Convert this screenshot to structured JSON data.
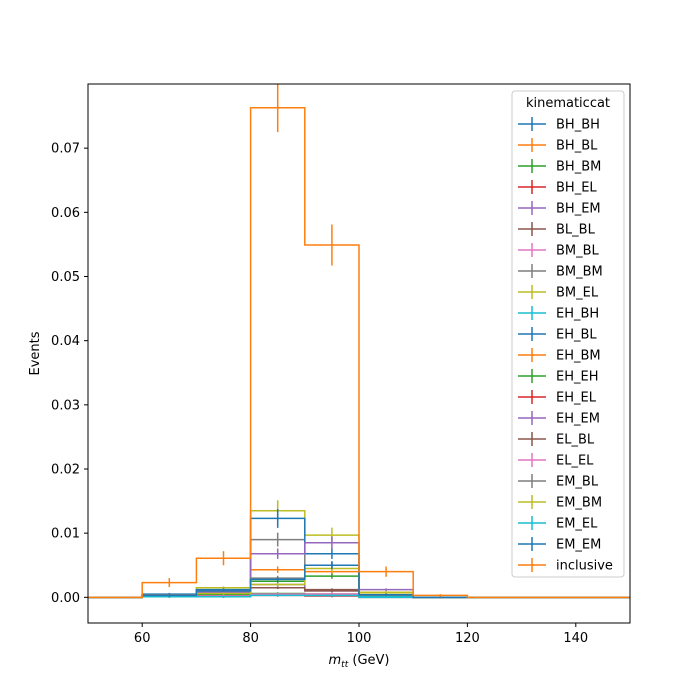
{
  "chart_data": {
    "type": "histogram-step",
    "xlabel": "$m_{tt}$ (GeV)",
    "xlabel_main": "m",
    "xlabel_sub": "tt",
    "xlabel_unit": " (GeV)",
    "ylabel": "Events",
    "xlim": [
      50,
      150
    ],
    "ylim": [
      -0.004,
      0.08
    ],
    "x_ticks": [
      60,
      80,
      100,
      120,
      140
    ],
    "y_ticks": [
      0.0,
      0.01,
      0.02,
      0.03,
      0.04,
      0.05,
      0.06,
      0.07
    ],
    "y_tick_labels": [
      "0.00",
      "0.01",
      "0.02",
      "0.03",
      "0.04",
      "0.05",
      "0.06",
      "0.07"
    ],
    "grid": false,
    "bin_edges": [
      50,
      60,
      70,
      80,
      90,
      100,
      110,
      120,
      130,
      140,
      150
    ],
    "legend": {
      "title": "kinematiccat",
      "placement": "top-right"
    },
    "series": [
      {
        "name": "BH_BH",
        "color": "#1f77b4",
        "values": [
          0,
          0.0004,
          0.0004,
          0.0005,
          0.0004,
          0.0002,
          0,
          0,
          0,
          0
        ]
      },
      {
        "name": "BH_BL",
        "color": "#ff7f0e",
        "values": [
          0,
          0.0003,
          0.0003,
          0.0004,
          0.0004,
          0.0001,
          0,
          0,
          0,
          0
        ]
      },
      {
        "name": "BH_BM",
        "color": "#2ca02c",
        "values": [
          0,
          0.0003,
          0.0004,
          0.0006,
          0.0005,
          0.0001,
          0,
          0,
          0,
          0
        ]
      },
      {
        "name": "BH_EL",
        "color": "#d62728",
        "values": [
          0,
          0.0001,
          0.0001,
          0.0003,
          0.0002,
          0,
          0,
          0,
          0,
          0
        ]
      },
      {
        "name": "BH_EM",
        "color": "#9467bd",
        "values": [
          0,
          0.0002,
          0.0003,
          0.002,
          0.001,
          0.0002,
          0,
          0,
          0,
          0
        ]
      },
      {
        "name": "BL_BL",
        "color": "#8c564b",
        "values": [
          0,
          0.0002,
          0.0002,
          0.0015,
          0.0012,
          0.0001,
          0,
          0,
          0,
          0
        ]
      },
      {
        "name": "BM_BL",
        "color": "#e377c2",
        "values": [
          0,
          0.0002,
          0.0003,
          0.0005,
          0.0004,
          0.0001,
          0,
          0,
          0,
          0
        ]
      },
      {
        "name": "BM_BM",
        "color": "#7f7f7f",
        "values": [
          0,
          0.0003,
          0.0005,
          0.009,
          0.005,
          0.0003,
          0,
          0,
          0,
          0
        ]
      },
      {
        "name": "BM_EL",
        "color": "#bcbd22",
        "values": [
          0,
          0.0004,
          0.0015,
          0.0135,
          0.0097,
          0.0005,
          0,
          0,
          0,
          0
        ]
      },
      {
        "name": "EH_BH",
        "color": "#17becf",
        "values": [
          0,
          0.0002,
          0.0002,
          0.0004,
          0.0003,
          0,
          0,
          0,
          0,
          0
        ]
      },
      {
        "name": "EH_BL",
        "color": "#1f77b4",
        "values": [
          0,
          0.0005,
          0.0012,
          0.0123,
          0.0068,
          0.0003,
          0,
          0,
          0,
          0
        ]
      },
      {
        "name": "EH_BM",
        "color": "#ff7f0e",
        "values": [
          0,
          0.0003,
          0.0005,
          0.0043,
          0.004,
          0.0002,
          0,
          0,
          0,
          0
        ]
      },
      {
        "name": "EH_EH",
        "color": "#2ca02c",
        "values": [
          0,
          0.0002,
          0.0004,
          0.0025,
          0.0033,
          0.0002,
          0,
          0,
          0,
          0
        ]
      },
      {
        "name": "EH_EL",
        "color": "#d62728",
        "values": [
          0,
          0.0001,
          0.0002,
          0.0004,
          0.0005,
          0.0001,
          0,
          0,
          0,
          0
        ]
      },
      {
        "name": "EH_EM",
        "color": "#9467bd",
        "values": [
          0,
          0.0004,
          0.0008,
          0.0068,
          0.0085,
          0.0012,
          0,
          0,
          0,
          0
        ]
      },
      {
        "name": "EL_BL",
        "color": "#8c564b",
        "values": [
          0,
          0.0001,
          0.0002,
          0.0015,
          0.001,
          0.0001,
          0,
          0,
          0,
          0
        ]
      },
      {
        "name": "EL_EL",
        "color": "#e377c2",
        "values": [
          0,
          0.0001,
          0.0002,
          0.0005,
          0.0005,
          0.0001,
          0,
          0,
          0,
          0
        ]
      },
      {
        "name": "EM_BL",
        "color": "#7f7f7f",
        "values": [
          0,
          0.0004,
          0.001,
          0.003,
          0.005,
          0.0003,
          0,
          0,
          0,
          0
        ]
      },
      {
        "name": "EM_BM",
        "color": "#bcbd22",
        "values": [
          0,
          0.0002,
          0.0006,
          0.002,
          0.0045,
          0.0008,
          0,
          0,
          0,
          0
        ]
      },
      {
        "name": "EM_EL",
        "color": "#17becf",
        "values": [
          0,
          0.0001,
          0.0001,
          0.0003,
          0.0003,
          0.0001,
          0,
          0,
          0,
          0
        ]
      },
      {
        "name": "EM_EM",
        "color": "#1f77b4",
        "values": [
          0,
          0.0003,
          0.001,
          0.0028,
          0.005,
          0.0004,
          0,
          0,
          0,
          0
        ]
      },
      {
        "name": "inclusive",
        "color": "#ff7f0e",
        "values": [
          0,
          0.0023,
          0.0061,
          0.0763,
          0.0549,
          0.004,
          0.0003,
          0,
          0,
          0
        ],
        "errors": [
          0,
          0.0007,
          0.0011,
          0.0038,
          0.0032,
          0.0008,
          0.0002,
          0,
          0,
          0
        ]
      }
    ]
  }
}
